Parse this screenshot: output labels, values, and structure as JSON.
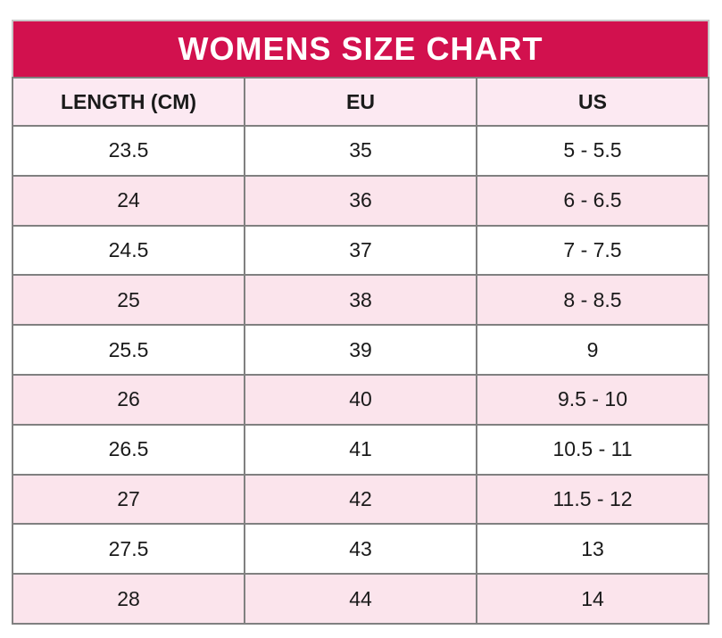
{
  "title": "WOMENS SIZE CHART",
  "colors": {
    "banner_bg": "#d2114e",
    "banner_text": "#ffffff",
    "header_row_bg": "#fce9f2",
    "row_alt_bg": "#fbe4ec",
    "row_bg": "#ffffff",
    "border": "#808080",
    "text": "#1a1a1a"
  },
  "chart_data": {
    "type": "table",
    "title": "WOMENS SIZE CHART",
    "columns": [
      "LENGTH (CM)",
      "EU",
      "US"
    ],
    "rows": [
      [
        "23.5",
        "35",
        "5 - 5.5"
      ],
      [
        "24",
        "36",
        "6 - 6.5"
      ],
      [
        "24.5",
        "37",
        "7 - 7.5"
      ],
      [
        "25",
        "38",
        "8 - 8.5"
      ],
      [
        "25.5",
        "39",
        "9"
      ],
      [
        "26",
        "40",
        "9.5 - 10"
      ],
      [
        "26.5",
        "41",
        "10.5 - 11"
      ],
      [
        "27",
        "42",
        "11.5 - 12"
      ],
      [
        "27.5",
        "43",
        "13"
      ],
      [
        "28",
        "44",
        "14"
      ]
    ],
    "layout": {
      "striped": true,
      "stripe_pattern": "odd-rows-pink",
      "text_align": "center"
    }
  }
}
